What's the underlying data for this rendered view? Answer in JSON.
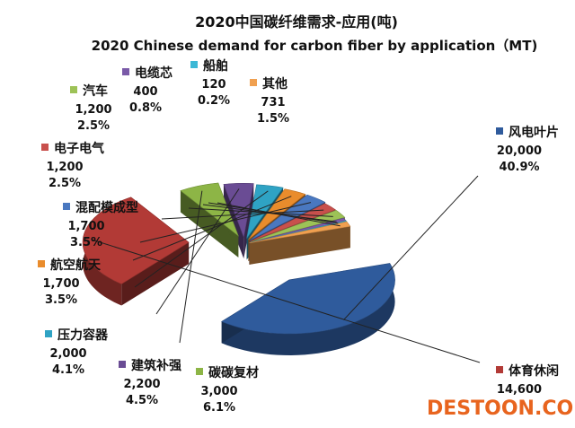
{
  "chart_data": {
    "type": "pie",
    "title": "2020中国碳纤维需求-应用(吨)",
    "subtitle": "2020 Chinese demand for carbon fiber by application（MT)",
    "slices": [
      {
        "name": "风电叶片",
        "value": 20000,
        "value_label": "20,000",
        "percent": "40.9%",
        "color": "#2f5b9c"
      },
      {
        "name": "体育休闲",
        "value": 14600,
        "value_label": "14,600",
        "percent": "",
        "color": "#b23a36"
      },
      {
        "name": "碳碳复材",
        "value": 3000,
        "value_label": "3,000",
        "percent": "6.1%",
        "color": "#8db546"
      },
      {
        "name": "建筑补强",
        "value": 2200,
        "value_label": "2,200",
        "percent": "4.5%",
        "color": "#6a4c94"
      },
      {
        "name": "压力容器",
        "value": 2000,
        "value_label": "2,000",
        "percent": "4.1%",
        "color": "#2fa3c4"
      },
      {
        "name": "航空航天",
        "value": 1700,
        "value_label": "1,700",
        "percent": "3.5%",
        "color": "#e98c2c"
      },
      {
        "name": "混配模成型",
        "value": 1700,
        "value_label": "1,700",
        "percent": "3.5%",
        "color": "#4a78c0"
      },
      {
        "name": "电子电气",
        "value": 1200,
        "value_label": "1,200",
        "percent": "2.5%",
        "color": "#c8504c"
      },
      {
        "name": "汽车",
        "value": 1200,
        "value_label": "1,200",
        "percent": "2.5%",
        "color": "#9dc257"
      },
      {
        "name": "电缆芯",
        "value": 400,
        "value_label": "400",
        "percent": "0.8%",
        "color": "#7a5aa8"
      },
      {
        "name": "船舶",
        "value": 120,
        "value_label": "120",
        "percent": "0.2%",
        "color": "#3cb8d6"
      },
      {
        "name": "其他",
        "value": 731,
        "value_label": "731",
        "percent": "1.5%",
        "color": "#f0a050"
      }
    ]
  },
  "watermark": "DESTOON.COM"
}
